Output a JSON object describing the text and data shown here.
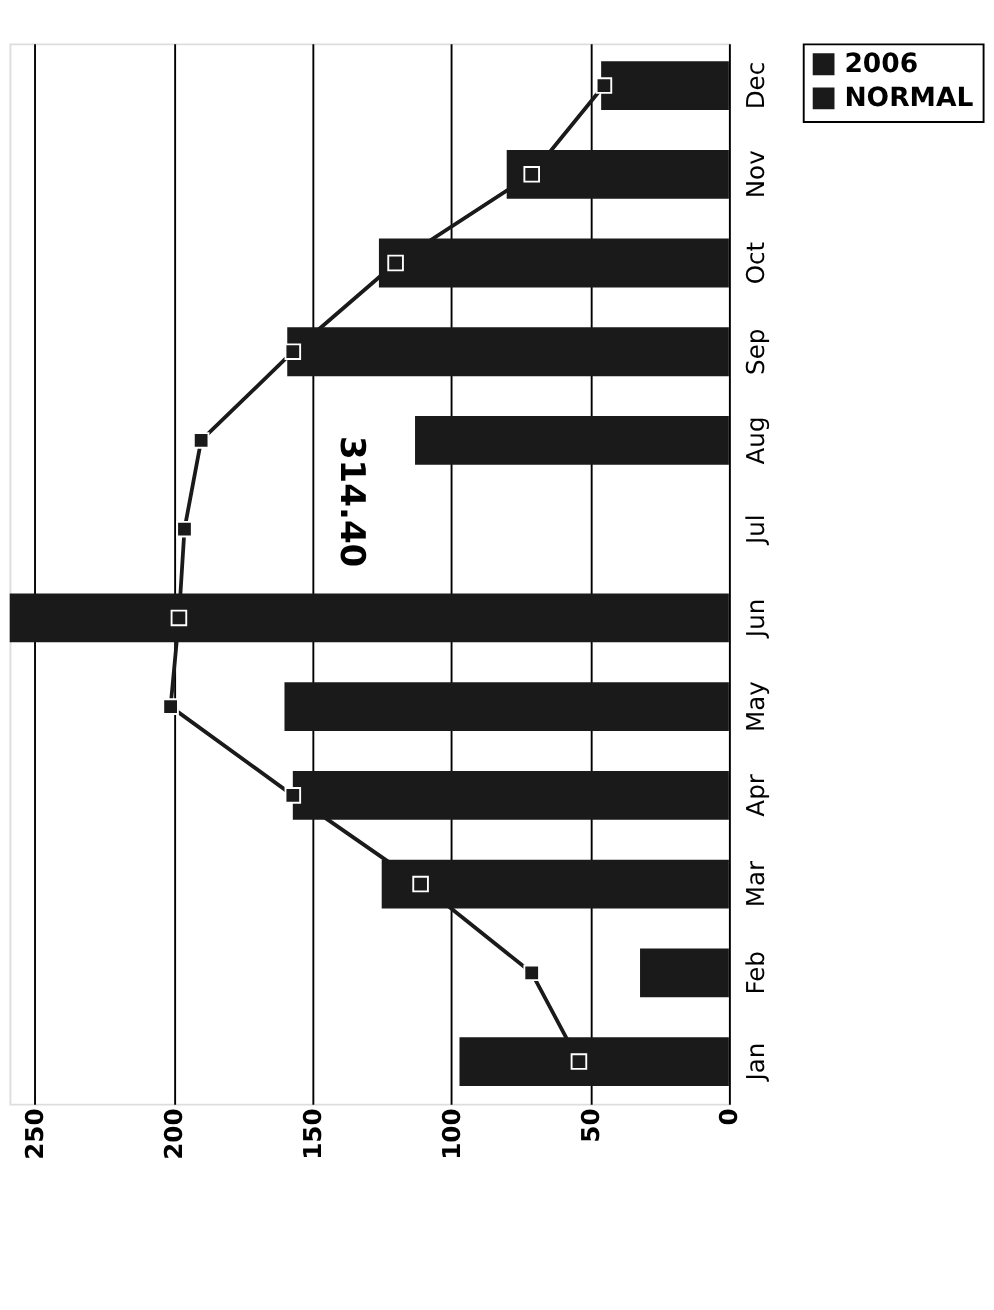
{
  "chart_data": {
    "type": "bar",
    "orientation": "horizontal",
    "categories": [
      "Dec",
      "Nov",
      "Oct",
      "Sep",
      "Aug",
      "Jul",
      "Jun",
      "May",
      "Apr",
      "Mar",
      "Feb",
      "Jan"
    ],
    "series": [
      {
        "name": "2006",
        "color": "#1a1a1a",
        "values": [
          46,
          80,
          126,
          159,
          113,
          null,
          259,
          160,
          157,
          125,
          32,
          97
        ]
      },
      {
        "name": "NORMAL",
        "type": "line",
        "color": "#1a1a1a",
        "marker": "square",
        "values": [
          45,
          71,
          120,
          157,
          190,
          196,
          198,
          201,
          157,
          111,
          71,
          54
        ]
      }
    ],
    "annotations": [
      "314.40"
    ],
    "xlim": [
      259,
      0
    ],
    "xticks": [
      0,
      50,
      100,
      150,
      200,
      250
    ],
    "grid": "x",
    "legend": "right"
  }
}
